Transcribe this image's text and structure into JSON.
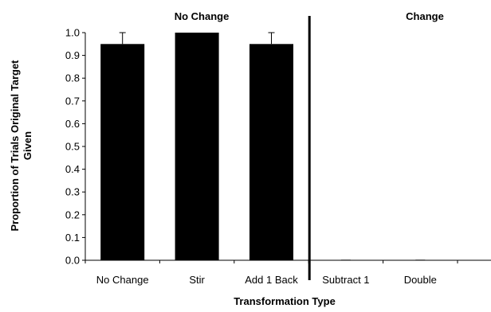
{
  "chart_data": {
    "type": "bar",
    "title": "",
    "xlabel": "Transformation Type",
    "ylabel_lines": [
      "Proportion of Trials Original Target",
      "Given"
    ],
    "ylim": [
      0,
      1.0
    ],
    "yticks": [
      "0.0",
      "0.1",
      "0.2",
      "0.3",
      "0.4",
      "0.5",
      "0.6",
      "0.7",
      "0.8",
      "0.9",
      "1.0"
    ],
    "categories": [
      "No Change",
      "Stir",
      "Add 1 Back",
      "Subtract 1",
      "Double"
    ],
    "values": [
      0.95,
      1.0,
      0.95,
      0.0,
      0.0
    ],
    "error_upper": [
      0.05,
      0.0,
      0.05,
      0.0,
      0.0
    ],
    "groups": [
      {
        "label": "No Change",
        "categories": [
          "No Change",
          "Stir",
          "Add 1 Back"
        ]
      },
      {
        "label": "Change",
        "categories": [
          "Subtract 1",
          "Double"
        ]
      }
    ],
    "bar_color": "#000000",
    "grid": false,
    "legend": "none"
  }
}
